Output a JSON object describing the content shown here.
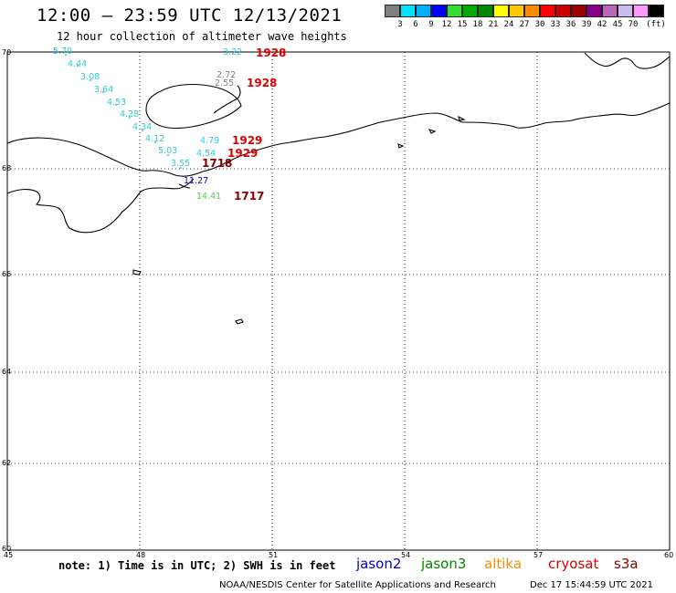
{
  "header": {
    "title": "12:00 – 23:59 UTC 12/13/2021",
    "subtitle": "12 hour collection of altimeter wave heights"
  },
  "scale": {
    "colors": [
      "#808080",
      "#00e0ff",
      "#00b0ff",
      "#0000ff",
      "#33dd33",
      "#00aa00",
      "#008800",
      "#ffff00",
      "#ffc800",
      "#ff8c00",
      "#ff0000",
      "#cc0000",
      "#990000",
      "#880088",
      "#bb66bb",
      "#ccbbee",
      "#ff99ff",
      "#000000"
    ],
    "labels": [
      "3",
      "6",
      "9",
      "12",
      "15",
      "18",
      "21",
      "24",
      "27",
      "30",
      "33",
      "36",
      "39",
      "42",
      "45",
      "70",
      "(ft)"
    ]
  },
  "axes": {
    "lat_labels": [
      "70",
      "68",
      "66",
      "64",
      "62",
      "60"
    ],
    "lon_labels": [
      "45",
      "48",
      "51",
      "54",
      "57",
      "60"
    ]
  },
  "observations": [
    {
      "value": "5.70",
      "color": "#33cccc"
    },
    {
      "value": "4.44",
      "color": "#33cccc"
    },
    {
      "value": "3.08",
      "color": "#33cccc"
    },
    {
      "value": "3.64",
      "color": "#33cccc"
    },
    {
      "value": "4.53",
      "color": "#33cccc"
    },
    {
      "value": "4.28",
      "color": "#33cccc"
    },
    {
      "value": "4.34",
      "color": "#33cccc"
    },
    {
      "value": "4.12",
      "color": "#33cccc"
    },
    {
      "value": "5.03",
      "color": "#33cccc"
    },
    {
      "value": "3.55",
      "color": "#33cccc"
    },
    {
      "value": "3.22",
      "color": "#33cccc"
    },
    {
      "value": "2.72",
      "color": "#808080"
    },
    {
      "value": "2.55",
      "color": "#808080"
    },
    {
      "value": "4.79",
      "color": "#33cccc"
    },
    {
      "value": "4.54",
      "color": "#33cccc"
    },
    {
      "value": "11.27",
      "color": "#0000cc"
    },
    {
      "value": "14.41",
      "color": "#55cc55"
    }
  ],
  "pass_times": [
    {
      "value": "1928",
      "color": "#dd0000"
    },
    {
      "value": "1928",
      "color": "#dd0000"
    },
    {
      "value": "1929",
      "color": "#dd0000"
    },
    {
      "value": "1929",
      "color": "#dd0000"
    },
    {
      "value": "1718",
      "color": "#880000"
    },
    {
      "value": "1717",
      "color": "#880000"
    }
  ],
  "footer": {
    "note": "note: 1) Time is in UTC; 2) SWH is in feet",
    "satellites": [
      {
        "name": "jason2",
        "color": "#0000cc"
      },
      {
        "name": "jason3",
        "color": "#008800"
      },
      {
        "name": "altika",
        "color": "#ff8c00"
      },
      {
        "name": "cryosat",
        "color": "#dd0000"
      },
      {
        "name": "s3a",
        "color": "#880000"
      }
    ],
    "credit": "NOAA/NESDIS Center for Satellite Applications and Research",
    "timestamp": "Dec 17 15:44:59 UTC 2021"
  }
}
